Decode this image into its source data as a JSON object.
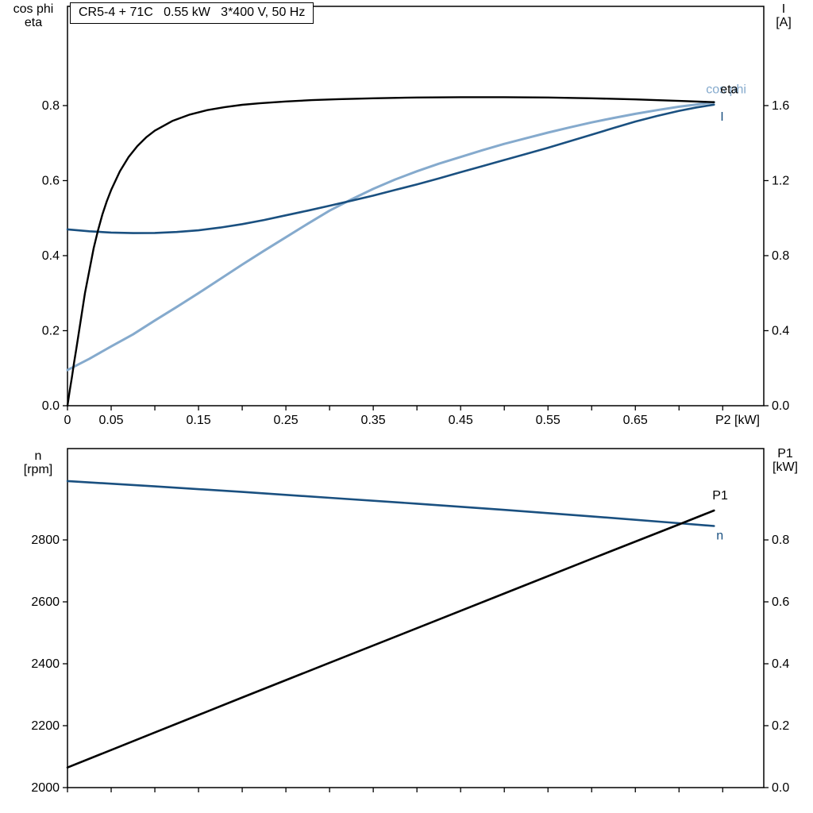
{
  "colors": {
    "axis": "#000000",
    "eta": "#000000",
    "p1": "#000000",
    "current": "#1a5080",
    "n": "#1a5080",
    "cos_phi": "#85aacd"
  },
  "chart_data": [
    {
      "type": "line",
      "name": "top",
      "title": "CR5-4 + 71C   0.55 kW   3*400 V, 50 Hz",
      "x_axis": {
        "label": "P2 [kW]",
        "range": [
          0,
          0.797
        ],
        "minor_step": 0.05,
        "minor_max": 0.75,
        "major_values": [
          0,
          0.05,
          0.15,
          0.25,
          0.35,
          0.45,
          0.55,
          0.65
        ],
        "major_labels": [
          "0",
          "0.05",
          "0.15",
          "0.25",
          "0.35",
          "0.45",
          "0.55",
          "0.65"
        ]
      },
      "left_axis": {
        "title_lines": [
          "cos phi",
          "eta"
        ],
        "range": [
          0,
          1.0645
        ],
        "tick_values": [
          0,
          0.2,
          0.4,
          0.6,
          0.8
        ],
        "tick_labels": [
          "0.0",
          "0.2",
          "0.4",
          "0.6",
          "0.8"
        ]
      },
      "right_axis": {
        "title_lines": [
          "I",
          "[A]"
        ],
        "range": [
          0,
          2.129
        ],
        "tick_values": [
          0,
          0.4,
          0.8,
          1.2,
          1.6
        ],
        "tick_labels": [
          "0.0",
          "0.4",
          "0.8",
          "1.2",
          "1.6"
        ]
      },
      "series": [
        {
          "name": "cos-phi",
          "label": "cos phi",
          "color": "cos_phi",
          "axis": "left",
          "width": 3.0,
          "label_dx": -10,
          "label_dy": -11,
          "points": [
            [
              0,
              0.095
            ],
            [
              0.025,
              0.125
            ],
            [
              0.05,
              0.158
            ],
            [
              0.075,
              0.19
            ],
            [
              0.1,
              0.227
            ],
            [
              0.125,
              0.263
            ],
            [
              0.15,
              0.3
            ],
            [
              0.175,
              0.338
            ],
            [
              0.2,
              0.376
            ],
            [
              0.225,
              0.413
            ],
            [
              0.25,
              0.449
            ],
            [
              0.275,
              0.485
            ],
            [
              0.3,
              0.52
            ],
            [
              0.325,
              0.55
            ],
            [
              0.35,
              0.578
            ],
            [
              0.375,
              0.603
            ],
            [
              0.4,
              0.625
            ],
            [
              0.425,
              0.645
            ],
            [
              0.45,
              0.663
            ],
            [
              0.475,
              0.681
            ],
            [
              0.5,
              0.698
            ],
            [
              0.525,
              0.713
            ],
            [
              0.55,
              0.728
            ],
            [
              0.575,
              0.742
            ],
            [
              0.6,
              0.755
            ],
            [
              0.625,
              0.767
            ],
            [
              0.65,
              0.778
            ],
            [
              0.675,
              0.788
            ],
            [
              0.7,
              0.797
            ],
            [
              0.72,
              0.803
            ],
            [
              0.74,
              0.809
            ]
          ]
        },
        {
          "name": "current",
          "label": "I",
          "color": "current",
          "axis": "right",
          "width": 2.6,
          "label_dx": 8,
          "label_dy": 20,
          "points": [
            [
              0,
              0.94
            ],
            [
              0.025,
              0.93
            ],
            [
              0.05,
              0.923
            ],
            [
              0.075,
              0.92
            ],
            [
              0.1,
              0.921
            ],
            [
              0.125,
              0.926
            ],
            [
              0.15,
              0.935
            ],
            [
              0.175,
              0.95
            ],
            [
              0.2,
              0.968
            ],
            [
              0.225,
              0.99
            ],
            [
              0.25,
              1.015
            ],
            [
              0.275,
              1.04
            ],
            [
              0.3,
              1.066
            ],
            [
              0.325,
              1.093
            ],
            [
              0.35,
              1.12
            ],
            [
              0.375,
              1.15
            ],
            [
              0.4,
              1.18
            ],
            [
              0.425,
              1.212
            ],
            [
              0.45,
              1.245
            ],
            [
              0.475,
              1.277
            ],
            [
              0.5,
              1.31
            ],
            [
              0.525,
              1.342
            ],
            [
              0.55,
              1.375
            ],
            [
              0.575,
              1.41
            ],
            [
              0.6,
              1.445
            ],
            [
              0.625,
              1.48
            ],
            [
              0.65,
              1.515
            ],
            [
              0.675,
              1.545
            ],
            [
              0.7,
              1.572
            ],
            [
              0.72,
              1.59
            ],
            [
              0.74,
              1.605
            ]
          ]
        },
        {
          "name": "eta",
          "label": "eta",
          "color": "eta",
          "axis": "left",
          "width": 2.4,
          "label_dx": 8,
          "label_dy": -11,
          "points": [
            [
              0,
              0
            ],
            [
              0.0025,
              0.04
            ],
            [
              0.005,
              0.075
            ],
            [
              0.0075,
              0.115
            ],
            [
              0.01,
              0.15
            ],
            [
              0.015,
              0.225
            ],
            [
              0.02,
              0.3
            ],
            [
              0.025,
              0.36
            ],
            [
              0.03,
              0.42
            ],
            [
              0.035,
              0.468
            ],
            [
              0.04,
              0.51
            ],
            [
              0.045,
              0.545
            ],
            [
              0.05,
              0.575
            ],
            [
              0.06,
              0.625
            ],
            [
              0.07,
              0.663
            ],
            [
              0.08,
              0.692
            ],
            [
              0.09,
              0.715
            ],
            [
              0.1,
              0.733
            ],
            [
              0.12,
              0.759
            ],
            [
              0.14,
              0.776
            ],
            [
              0.16,
              0.788
            ],
            [
              0.18,
              0.796
            ],
            [
              0.2,
              0.802
            ],
            [
              0.22,
              0.806
            ],
            [
              0.25,
              0.811
            ],
            [
              0.28,
              0.8145
            ],
            [
              0.31,
              0.817
            ],
            [
              0.35,
              0.8195
            ],
            [
              0.4,
              0.8215
            ],
            [
              0.45,
              0.8225
            ],
            [
              0.5,
              0.8225
            ],
            [
              0.55,
              0.8215
            ],
            [
              0.6,
              0.8195
            ],
            [
              0.65,
              0.8165
            ],
            [
              0.7,
              0.8125
            ],
            [
              0.74,
              0.809
            ]
          ]
        }
      ]
    },
    {
      "type": "line",
      "name": "bottom",
      "title": "",
      "x_axis": {
        "label": "",
        "range": [
          0,
          0.797
        ],
        "minor_step": 0.05,
        "minor_max": 0.75,
        "major_values": [],
        "major_labels": []
      },
      "left_axis": {
        "title_lines": [
          "n",
          "[rpm]"
        ],
        "range": [
          2000,
          3095
        ],
        "tick_values": [
          2000,
          2200,
          2400,
          2600,
          2800
        ],
        "tick_labels": [
          "2000",
          "2200",
          "2400",
          "2600",
          "2800"
        ]
      },
      "right_axis": {
        "title_lines": [
          "P1",
          "[kW]"
        ],
        "range": [
          0,
          1.095
        ],
        "tick_values": [
          0,
          0.2,
          0.4,
          0.6,
          0.8
        ],
        "tick_labels": [
          "0.0",
          "0.2",
          "0.4",
          "0.6",
          "0.8"
        ]
      },
      "series": [
        {
          "name": "n",
          "label": "n",
          "color": "n",
          "axis": "left",
          "width": 2.6,
          "label_dx": 3,
          "label_dy": 17,
          "points": [
            [
              0,
              2990
            ],
            [
              0.1,
              2973
            ],
            [
              0.2,
              2955
            ],
            [
              0.3,
              2936
            ],
            [
              0.4,
              2917
            ],
            [
              0.5,
              2897
            ],
            [
              0.6,
              2876
            ],
            [
              0.7,
              2854
            ],
            [
              0.74,
              2845
            ]
          ]
        },
        {
          "name": "p1",
          "label": "P1",
          "color": "p1",
          "axis": "right",
          "width": 2.6,
          "label_dx": -2,
          "label_dy": -14,
          "points": [
            [
              0,
              0.065
            ],
            [
              0.1,
              0.178
            ],
            [
              0.2,
              0.291
            ],
            [
              0.3,
              0.403
            ],
            [
              0.4,
              0.515
            ],
            [
              0.5,
              0.627
            ],
            [
              0.6,
              0.739
            ],
            [
              0.7,
              0.85
            ],
            [
              0.74,
              0.895
            ]
          ]
        }
      ]
    }
  ]
}
